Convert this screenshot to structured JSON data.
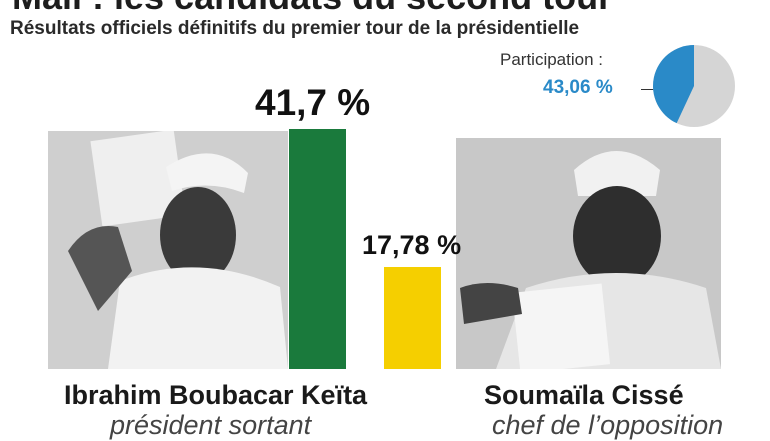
{
  "header": {
    "title": "Mali : les candidats du second tour",
    "subtitle": "Résultats officiels définitifs du premier tour de la présidentielle"
  },
  "participation": {
    "label": "Participation :",
    "value_label": "43,06 %",
    "value": 43.06,
    "color": "#2a8ac8",
    "rest_color": "#d5d5d5"
  },
  "chart_data": {
    "type": "bar",
    "categories": [
      "Ibrahim Boubacar Keïta",
      "Soumaïla Cissé"
    ],
    "values": [
      41.7,
      17.78
    ],
    "value_labels": [
      "41,7 %",
      "17,78 %"
    ],
    "colors": [
      "#1a7a3c",
      "#f5cf00"
    ],
    "subtitles": [
      "président sortant",
      "chef de l’opposition"
    ],
    "title": "Mali : les candidats du second tour",
    "subtitle": "Résultats officiels définitifs du premier tour de la présidentielle"
  }
}
